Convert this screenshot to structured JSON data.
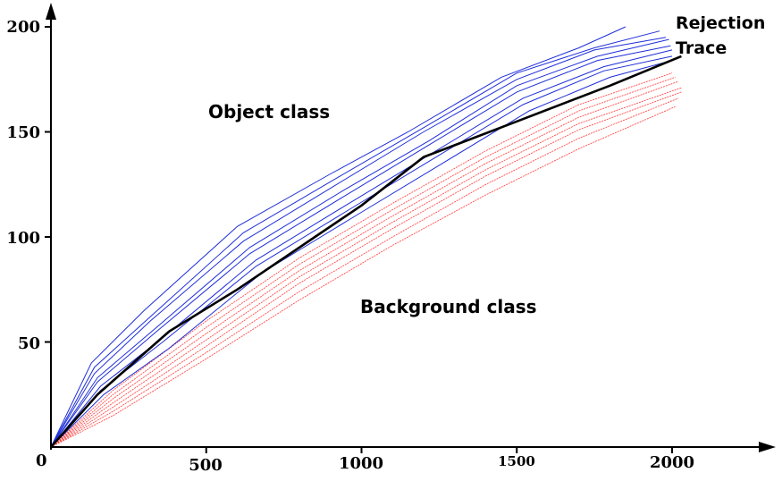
{
  "chart_data": {
    "type": "line",
    "xlim": [
      0,
      2000
    ],
    "ylim": [
      0,
      200
    ],
    "x_ticks": [
      "500",
      "1000",
      "1500",
      "2000"
    ],
    "y_ticks": [
      "50",
      "100",
      "150",
      "200"
    ],
    "origin_label": "0",
    "annotations": {
      "object_class": "Object class",
      "background_class": "Background class",
      "rejection_trace_1": "Rejection",
      "rejection_trace_2": "Trace"
    },
    "colors": {
      "object": "#1f2fd8",
      "background": "#ff4a4a",
      "rejection": "#000000"
    },
    "grid": false,
    "series": [
      {
        "group": "rejection",
        "x": [
          0,
          150,
          380,
          600,
          850,
          1000,
          1200,
          1500,
          1800,
          2030
        ],
        "y": [
          0,
          25,
          55,
          75,
          100,
          115,
          138,
          155,
          172,
          186
        ]
      },
      {
        "group": "object",
        "x": [
          0,
          130,
          300,
          600,
          900,
          1150,
          1450,
          1700,
          1850
        ],
        "y": [
          0,
          40,
          65,
          105,
          130,
          150,
          176,
          190,
          200
        ]
      },
      {
        "group": "object",
        "x": [
          0,
          140,
          320,
          620,
          920,
          1200,
          1500,
          1750,
          1960
        ],
        "y": [
          0,
          38,
          62,
          102,
          128,
          152,
          178,
          190,
          198
        ]
      },
      {
        "group": "object",
        "x": [
          0,
          140,
          320,
          620,
          920,
          1200,
          1500,
          1750,
          1980
        ],
        "y": [
          0,
          35,
          60,
          98,
          125,
          150,
          175,
          189,
          195
        ]
      },
      {
        "group": "object",
        "x": [
          0,
          150,
          340,
          640,
          940,
          1220,
          1500,
          1760,
          1990
        ],
        "y": [
          0,
          33,
          57,
          95,
          122,
          146,
          172,
          186,
          194
        ]
      },
      {
        "group": "object",
        "x": [
          0,
          150,
          340,
          640,
          940,
          1220,
          1500,
          1760,
          1995
        ],
        "y": [
          0,
          31,
          55,
          92,
          119,
          144,
          169,
          184,
          191
        ]
      },
      {
        "group": "object",
        "x": [
          0,
          160,
          360,
          660,
          960,
          1240,
          1520,
          1780,
          2000
        ],
        "y": [
          0,
          29,
          52,
          89,
          116,
          141,
          166,
          181,
          189
        ]
      },
      {
        "group": "object",
        "x": [
          0,
          160,
          360,
          660,
          960,
          1240,
          1520,
          1780,
          2000
        ],
        "y": [
          0,
          27,
          50,
          86,
          113,
          138,
          163,
          179,
          186
        ]
      },
      {
        "group": "object",
        "x": [
          0,
          170,
          380,
          680,
          980,
          1260,
          1540,
          1800,
          2000
        ],
        "y": [
          0,
          25,
          47,
          83,
          110,
          135,
          160,
          176,
          184
        ]
      },
      {
        "group": "background",
        "x": [
          0,
          200,
          500,
          800,
          1100,
          1400,
          1700,
          2000
        ],
        "y": [
          0,
          27,
          60,
          90,
          116,
          141,
          163,
          178
        ]
      },
      {
        "group": "background",
        "x": [
          0,
          200,
          500,
          800,
          1100,
          1400,
          1700,
          2010
        ],
        "y": [
          0,
          25,
          57,
          87,
          113,
          138,
          160,
          176
        ]
      },
      {
        "group": "background",
        "x": [
          0,
          200,
          500,
          800,
          1100,
          1400,
          1700,
          2020
        ],
        "y": [
          0,
          23,
          54,
          84,
          110,
          135,
          157,
          174
        ]
      },
      {
        "group": "background",
        "x": [
          0,
          200,
          500,
          800,
          1100,
          1400,
          1700,
          2030
        ],
        "y": [
          0,
          21,
          51,
          81,
          107,
          132,
          154,
          171
        ]
      },
      {
        "group": "background",
        "x": [
          0,
          200,
          500,
          800,
          1100,
          1400,
          1700,
          2030
        ],
        "y": [
          0,
          19,
          48,
          78,
          104,
          129,
          151,
          169
        ]
      },
      {
        "group": "background",
        "x": [
          0,
          200,
          500,
          800,
          1100,
          1400,
          1700,
          2020
        ],
        "y": [
          0,
          17,
          45,
          74,
          100,
          125,
          147,
          166
        ]
      },
      {
        "group": "background",
        "x": [
          0,
          200,
          500,
          800,
          1100,
          1400,
          1700,
          2010
        ],
        "y": [
          0,
          15,
          42,
          70,
          96,
          120,
          142,
          162
        ]
      }
    ]
  }
}
